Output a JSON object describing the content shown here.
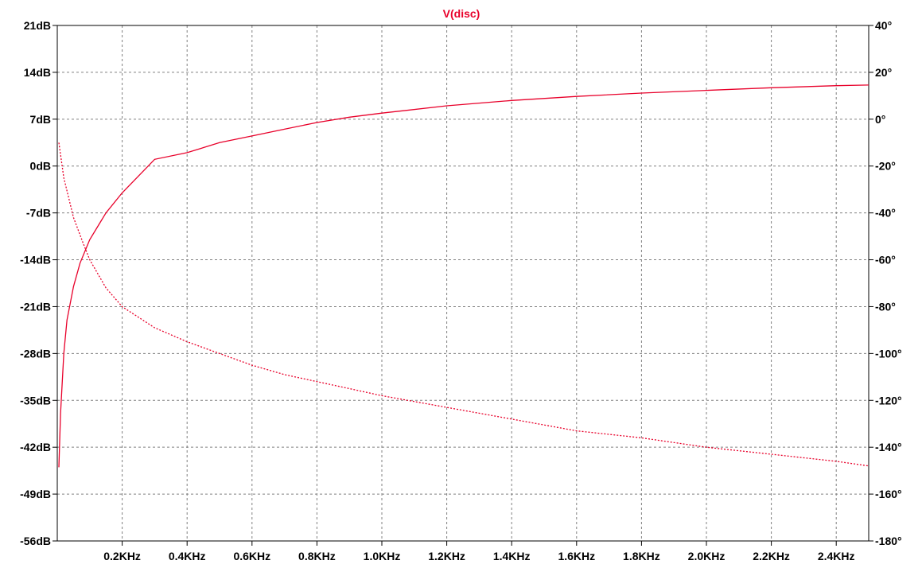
{
  "chart_data": {
    "type": "line",
    "title": "V(disc)",
    "title_color": "#e8002a",
    "xlabel": "",
    "ylabel": "",
    "grid": true,
    "x_axis": {
      "unit": "KHz",
      "range_khz": [
        0,
        2.5
      ],
      "ticks": [
        {
          "value": 0.2,
          "label": "0.2KHz"
        },
        {
          "value": 0.4,
          "label": "0.4KHz"
        },
        {
          "value": 0.6,
          "label": "0.6KHz"
        },
        {
          "value": 0.8,
          "label": "0.8KHz"
        },
        {
          "value": 1.0,
          "label": "1.0KHz"
        },
        {
          "value": 1.2,
          "label": "1.2KHz"
        },
        {
          "value": 1.4,
          "label": "1.4KHz"
        },
        {
          "value": 1.6,
          "label": "1.6KHz"
        },
        {
          "value": 1.8,
          "label": "1.8KHz"
        },
        {
          "value": 2.0,
          "label": "2.0KHz"
        },
        {
          "value": 2.2,
          "label": "2.2KHz"
        },
        {
          "value": 2.4,
          "label": "2.4KHz"
        }
      ]
    },
    "y_left": {
      "unit": "dB",
      "range": [
        -56,
        21
      ],
      "ticks": [
        {
          "value": 21,
          "label": "21dB"
        },
        {
          "value": 14,
          "label": "14dB"
        },
        {
          "value": 7,
          "label": "7dB"
        },
        {
          "value": 0,
          "label": "0dB"
        },
        {
          "value": -7,
          "label": "-7dB"
        },
        {
          "value": -14,
          "label": "-14dB"
        },
        {
          "value": -21,
          "label": "-21dB"
        },
        {
          "value": -28,
          "label": "-28dB"
        },
        {
          "value": -35,
          "label": "-35dB"
        },
        {
          "value": -42,
          "label": "-42dB"
        },
        {
          "value": -49,
          "label": "-49dB"
        },
        {
          "value": -56,
          "label": "-56dB"
        }
      ]
    },
    "y_right": {
      "unit": "°",
      "range": [
        -180,
        40
      ],
      "ticks": [
        {
          "value": 40,
          "label": "40°"
        },
        {
          "value": 20,
          "label": "20°"
        },
        {
          "value": 0,
          "label": "0°"
        },
        {
          "value": -20,
          "label": "-20°"
        },
        {
          "value": -40,
          "label": "-40°"
        },
        {
          "value": -60,
          "label": "-60°"
        },
        {
          "value": -80,
          "label": "-80°"
        },
        {
          "value": -100,
          "label": "-100°"
        },
        {
          "value": -120,
          "label": "-120°"
        },
        {
          "value": -140,
          "label": "-140°"
        },
        {
          "value": -160,
          "label": "-160°"
        },
        {
          "value": -180,
          "label": "-180°"
        }
      ]
    },
    "series": [
      {
        "quantity": "magnitude",
        "axis": "left",
        "style": "solid",
        "color": "#e8002a",
        "x_khz": [
          0.005,
          0.01,
          0.02,
          0.03,
          0.05,
          0.07,
          0.1,
          0.15,
          0.2,
          0.3,
          0.4,
          0.5,
          0.6,
          0.7,
          0.8,
          0.9,
          1.0,
          1.2,
          1.4,
          1.6,
          1.8,
          2.0,
          2.2,
          2.4,
          2.5
        ],
        "y": [
          -45,
          -37,
          -28,
          -23,
          -18,
          -14.5,
          -11,
          -7,
          -4,
          1,
          2,
          3.5,
          4.5,
          5.5,
          6.5,
          7.3,
          7.9,
          9,
          9.8,
          10.4,
          10.9,
          11.3,
          11.7,
          12,
          12.1
        ]
      },
      {
        "quantity": "phase",
        "axis": "right",
        "style": "dashed",
        "color": "#e8002a",
        "x_khz": [
          0.005,
          0.02,
          0.05,
          0.08,
          0.1,
          0.15,
          0.2,
          0.3,
          0.4,
          0.5,
          0.6,
          0.7,
          0.8,
          0.9,
          1.0,
          1.2,
          1.4,
          1.6,
          1.8,
          2.0,
          2.2,
          2.4,
          2.5
        ],
        "y": [
          -10,
          -25,
          -42,
          -53,
          -60,
          -72,
          -80,
          -89,
          -95,
          -100,
          -105,
          -109,
          -112,
          -115,
          -118,
          -123,
          -128,
          -133,
          -136,
          -140,
          -143,
          -146,
          -148
        ]
      }
    ]
  }
}
